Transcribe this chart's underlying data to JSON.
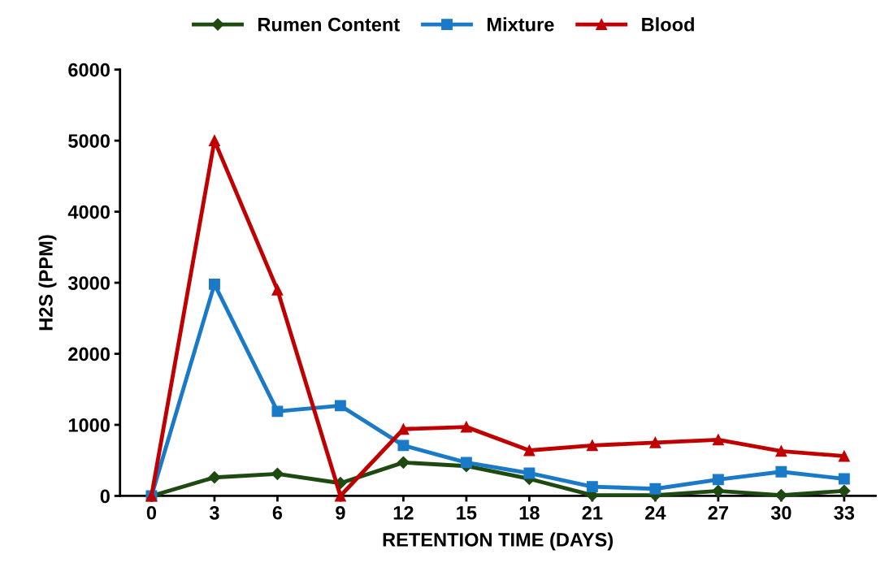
{
  "chart_data": {
    "type": "line",
    "xlabel": "RETENTION TIME (DAYS)",
    "ylabel": "H2S (PPM)",
    "categories": [
      "0",
      "3",
      "6",
      "9",
      "12",
      "15",
      "18",
      "21",
      "24",
      "27",
      "30",
      "33"
    ],
    "ylim": [
      0,
      6000
    ],
    "yticks": [
      0,
      1000,
      2000,
      3000,
      4000,
      5000,
      6000
    ],
    "grid": false,
    "legend": "top",
    "series": [
      {
        "name": "Rumen Content",
        "color": "#1e4a12",
        "marker": "diamond",
        "values": [
          0,
          260,
          310,
          180,
          470,
          420,
          240,
          10,
          10,
          70,
          10,
          70
        ]
      },
      {
        "name": "Mixture",
        "color": "#1a7ac8",
        "marker": "square",
        "values": [
          0,
          2980,
          1190,
          1270,
          710,
          470,
          320,
          130,
          100,
          230,
          340,
          240
        ]
      },
      {
        "name": "Blood",
        "color": "#c00000",
        "marker": "triangle",
        "values": [
          0,
          5000,
          2900,
          0,
          940,
          970,
          640,
          710,
          750,
          790,
          630,
          560
        ]
      }
    ]
  }
}
